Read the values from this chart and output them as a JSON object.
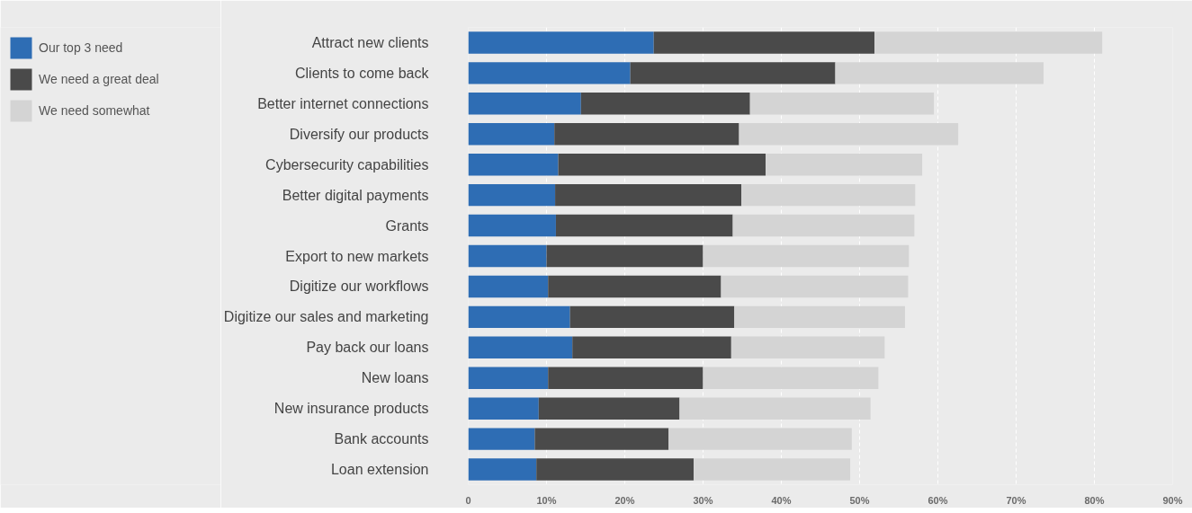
{
  "chart_data": {
    "type": "bar",
    "orientation": "horizontal",
    "stacked": true,
    "categories": [
      "Attract new clients",
      "Clients to come back",
      "Better internet connections",
      "Diversify our products",
      "Cybersecurity capabilities",
      "Better digital payments",
      "Grants",
      "Export to new markets",
      "Digitize our workflows",
      "Digitize our sales and marketing",
      "Pay back our loans",
      "New loans",
      "New insurance products",
      "Bank accounts",
      "Loan extension"
    ],
    "series": [
      {
        "name": "Our top 3 need",
        "color": "#2e6db4",
        "values": [
          23.7,
          20.7,
          14.4,
          11.0,
          11.5,
          11.1,
          11.2,
          10.0,
          10.2,
          13.0,
          13.3,
          10.2,
          9.0,
          8.5,
          8.7
        ]
      },
      {
        "name": "We need a great deal",
        "color": "#4a4a4a",
        "values": [
          28.2,
          26.2,
          21.6,
          23.6,
          26.5,
          23.8,
          22.6,
          20.0,
          22.1,
          21.0,
          20.3,
          19.8,
          18.0,
          17.1,
          20.1
        ]
      },
      {
        "name": "We need somewhat",
        "color": "#d4d4d4",
        "values": [
          29.1,
          26.6,
          23.5,
          28.0,
          20.0,
          22.2,
          23.2,
          26.3,
          23.9,
          21.8,
          19.6,
          22.4,
          24.4,
          23.4,
          20.0
        ]
      }
    ],
    "xlim": [
      0,
      90
    ],
    "xticks": [
      0,
      {
        "value": 10,
        "label": "10%"
      },
      {
        "value": 20,
        "label": "20%"
      },
      {
        "value": 30,
        "label": "30%"
      },
      {
        "value": 40,
        "label": "40%"
      },
      {
        "value": 50,
        "label": "50%"
      },
      {
        "value": 60,
        "label": "60%"
      },
      {
        "value": 70,
        "label": "70%"
      },
      {
        "value": 80,
        "label": "80%"
      },
      {
        "value": 90,
        "label": "90%"
      }
    ],
    "grid": "x",
    "legend": "top left"
  }
}
